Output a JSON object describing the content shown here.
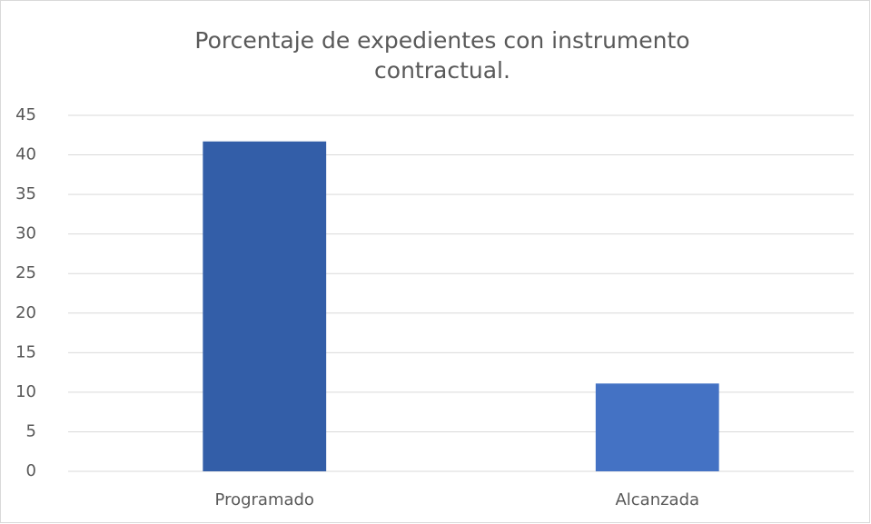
{
  "chart_data": {
    "type": "bar",
    "title": "Porcentaje de expedientes con instrumento contractual.",
    "categories": [
      "Programado",
      "Alcanzada"
    ],
    "values": [
      41.7,
      11.1
    ],
    "colors": [
      "#335ea8",
      "#4472c4"
    ],
    "ylim": [
      0,
      45
    ],
    "yticks": [
      0,
      5,
      10,
      15,
      20,
      25,
      30,
      35,
      40,
      45
    ],
    "grid": true
  }
}
